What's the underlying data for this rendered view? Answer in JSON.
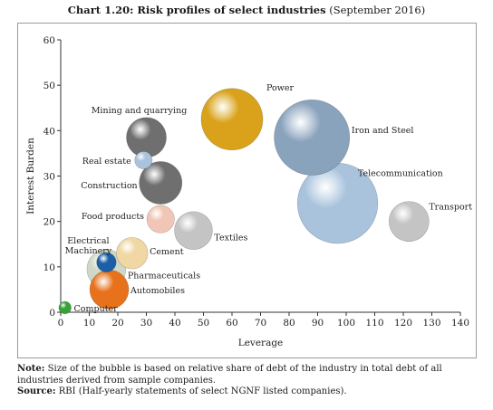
{
  "title_bold": "Chart 1.20: Risk profiles of select industries",
  "title_rest": " (September 2016)",
  "note_label": "Note:",
  "note_text": " Size of the bubble is based on relative share of debt of the industry in total debt of all industries derived from sample companies.",
  "source_label": "Source:",
  "source_text": " RBI (Half-yearly statements of select NGNF listed companies).",
  "chart_data": {
    "type": "scatter",
    "subtype": "bubble",
    "xlabel": "Leverage",
    "ylabel": "Interest Burden",
    "xlim": [
      0,
      140
    ],
    "ylim": [
      0,
      60
    ],
    "xticks": [
      0,
      10,
      20,
      30,
      40,
      50,
      60,
      70,
      80,
      90,
      100,
      110,
      120,
      130,
      140
    ],
    "yticks": [
      0,
      10,
      20,
      30,
      40,
      50,
      60
    ],
    "grid": false,
    "points": [
      {
        "label": "Power",
        "x": 60,
        "y": 42.5,
        "size": 100,
        "color": "#d9a21a"
      },
      {
        "label": "Iron and Steel",
        "x": 88,
        "y": 38.5,
        "size": 150,
        "color": "#8aa3bd"
      },
      {
        "label": "Telecommunication",
        "x": 97,
        "y": 24,
        "size": 170,
        "color": "#a9c3dd"
      },
      {
        "label": "Transport",
        "x": 122,
        "y": 20,
        "size": 42,
        "color": "#c4c4c4"
      },
      {
        "label": "Mining and quarrying",
        "x": 30,
        "y": 38.5,
        "size": 42,
        "color": "#6f6f6f"
      },
      {
        "label": "Real estate",
        "x": 29,
        "y": 33.5,
        "size": 8,
        "color": "#a9c3dd"
      },
      {
        "label": "Construction",
        "x": 35,
        "y": 28.5,
        "size": 48,
        "color": "#6f6f6f"
      },
      {
        "label": "Food products",
        "x": 35,
        "y": 20.5,
        "size": 20,
        "color": "#f1c6b6"
      },
      {
        "label": "Textiles",
        "x": 46.5,
        "y": 18,
        "size": 38,
        "color": "#c4c4c4"
      },
      {
        "label": "Cement",
        "x": 25,
        "y": 13,
        "size": 26,
        "color": "#f0d7a3"
      },
      {
        "label": "Pharmaceuticals",
        "x": 16,
        "y": 9.5,
        "size": 40,
        "color": "#cfd8c6"
      },
      {
        "label": "Electrical Machinery",
        "x": 16,
        "y": 11,
        "size": 10,
        "color": "#1b5fa8"
      },
      {
        "label": "Automobiles",
        "x": 17,
        "y": 5,
        "size": 40,
        "color": "#e8721c"
      },
      {
        "label": "Computer",
        "x": 1.5,
        "y": 1,
        "size": 4,
        "color": "#3aa13a"
      }
    ]
  }
}
